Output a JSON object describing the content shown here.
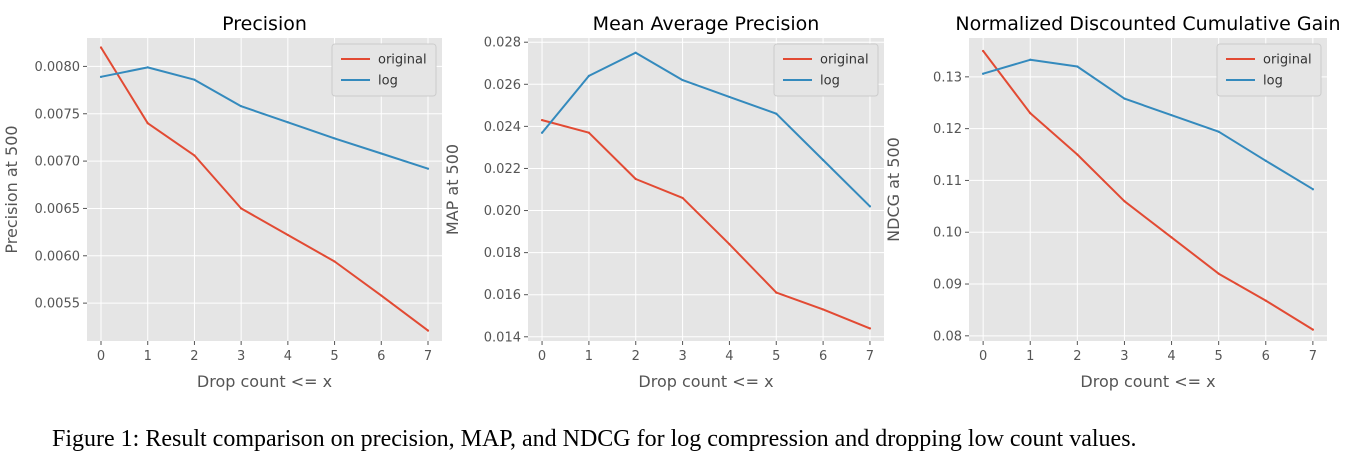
{
  "colors": {
    "original": "#e24a33",
    "log": "#348abd",
    "plot_bg": "#e5e5e5",
    "grid": "#ffffff",
    "tick_text": "#555555"
  },
  "caption": "Figure 1: Result comparison on precision, MAP, and NDCG for log compression and dropping low count values.",
  "chart_data": [
    {
      "type": "line",
      "title": "Precision",
      "xlabel": "Drop count <= x",
      "ylabel": "Precision at 500",
      "xlim": [
        -0.3,
        7.3
      ],
      "ylim": [
        0.0051,
        0.0083
      ],
      "xticks": [
        0,
        1,
        2,
        3,
        4,
        5,
        6,
        7
      ],
      "yticks": [
        0.0055,
        0.006,
        0.0065,
        0.007,
        0.0075,
        0.008
      ],
      "yticklabels": [
        "0.0055",
        "0.0060",
        "0.0065",
        "0.0070",
        "0.0075",
        "0.0080"
      ],
      "grid": true,
      "legend": "top-right",
      "x": [
        0,
        1,
        2,
        3,
        4,
        5,
        6,
        7
      ],
      "series": [
        {
          "name": "original",
          "color": "#e24a33",
          "values": [
            0.0082,
            0.0074,
            0.00706,
            0.0065,
            0.00622,
            0.00594,
            0.00558,
            0.00521
          ]
        },
        {
          "name": "log",
          "color": "#348abd",
          "values": [
            0.00789,
            0.00799,
            0.00786,
            0.00758,
            0.00741,
            0.00724,
            0.00708,
            0.00692
          ]
        }
      ]
    },
    {
      "type": "line",
      "title": "Mean Average Precision",
      "xlabel": "Drop count <= x",
      "ylabel": "MAP at 500",
      "xlim": [
        -0.3,
        7.3
      ],
      "ylim": [
        0.0138,
        0.0282
      ],
      "xticks": [
        0,
        1,
        2,
        3,
        4,
        5,
        6,
        7
      ],
      "yticks": [
        0.014,
        0.016,
        0.018,
        0.02,
        0.022,
        0.024,
        0.026,
        0.028
      ],
      "yticklabels": [
        "0.014",
        "0.016",
        "0.018",
        "0.020",
        "0.022",
        "0.024",
        "0.026",
        "0.028"
      ],
      "grid": true,
      "legend": "top-right",
      "x": [
        0,
        1,
        2,
        3,
        4,
        5,
        6,
        7
      ],
      "series": [
        {
          "name": "original",
          "color": "#e24a33",
          "values": [
            0.0243,
            0.0237,
            0.0215,
            0.0206,
            0.0184,
            0.0161,
            0.0153,
            0.0144
          ]
        },
        {
          "name": "log",
          "color": "#348abd",
          "values": [
            0.0237,
            0.0264,
            0.0275,
            0.0262,
            0.0254,
            0.0246,
            0.0224,
            0.0202
          ]
        }
      ]
    },
    {
      "type": "line",
      "title": "Normalized Discounted Cumulative Gain",
      "xlabel": "Drop count <= x",
      "ylabel": "NDCG at 500",
      "xlim": [
        -0.3,
        7.3
      ],
      "ylim": [
        0.079,
        0.1375
      ],
      "xticks": [
        0,
        1,
        2,
        3,
        4,
        5,
        6,
        7
      ],
      "yticks": [
        0.08,
        0.09,
        0.1,
        0.11,
        0.12,
        0.13
      ],
      "yticklabels": [
        "0.08",
        "0.09",
        "0.10",
        "0.11",
        "0.12",
        "0.13"
      ],
      "grid": true,
      "legend": "top-right",
      "x": [
        0,
        1,
        2,
        3,
        4,
        5,
        6,
        7
      ],
      "series": [
        {
          "name": "original",
          "color": "#e24a33",
          "values": [
            0.135,
            0.123,
            0.115,
            0.106,
            0.099,
            0.092,
            0.0868,
            0.0812
          ]
        },
        {
          "name": "log",
          "color": "#348abd",
          "values": [
            0.1306,
            0.1333,
            0.132,
            0.1258,
            0.1226,
            0.1194,
            0.1138,
            0.1083
          ]
        }
      ]
    }
  ]
}
